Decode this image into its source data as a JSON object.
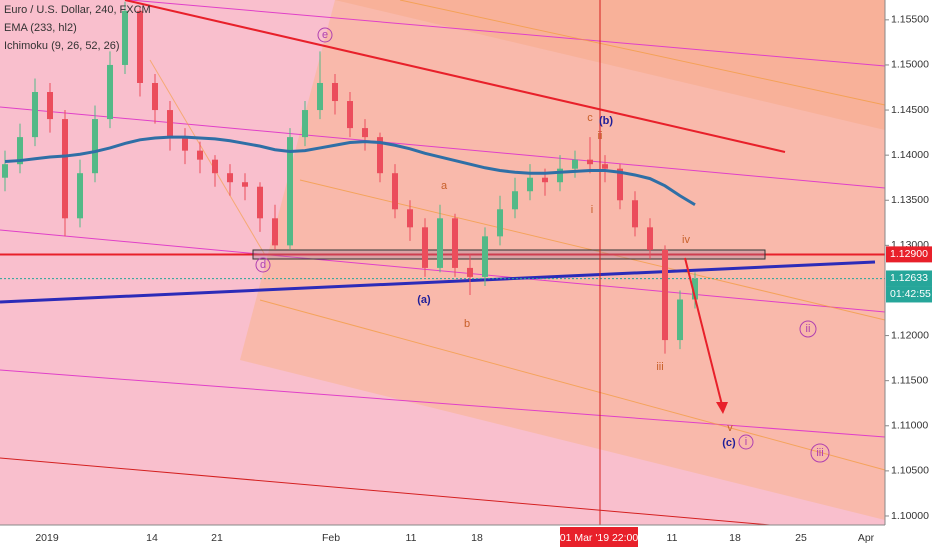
{
  "chart_data": {
    "type": "candlestick",
    "legend": [
      "Euro / U.S. Dollar, 240, FXCM",
      "EMA (233, hl2)",
      "Ichimoku (9, 26, 52, 26)"
    ],
    "up_color": "#53b987",
    "down_color": "#eb4d5c",
    "ema_color": "#2f6fa6",
    "ylim": [
      1.099,
      1.1572
    ],
    "yticks": [
      {
        "value": 1.155,
        "label": "1.15500"
      },
      {
        "value": 1.15,
        "label": "1.15000"
      },
      {
        "value": 1.145,
        "label": "1.14500"
      },
      {
        "value": 1.14,
        "label": "1.14000"
      },
      {
        "value": 1.135,
        "label": "1.13500"
      },
      {
        "value": 1.13,
        "label": "1.13000"
      },
      {
        "value": 1.12,
        "label": "1.12000"
      },
      {
        "value": 1.115,
        "label": "1.11500"
      },
      {
        "value": 1.11,
        "label": "1.11000"
      },
      {
        "value": 1.105,
        "label": "1.10500"
      },
      {
        "value": 1.1,
        "label": "1.10000"
      }
    ],
    "x_labels": [
      "2019",
      "14",
      "21",
      "Feb",
      "11",
      "18",
      "11",
      "18",
      "25",
      "Apr"
    ],
    "crosshair_label": "01 Mar '19  22:00",
    "level_price": {
      "value": 1.129,
      "label": "1.12900"
    },
    "last_price": {
      "value": 1.12633,
      "label": "1.12633"
    },
    "countdown": "01:42:55",
    "annotations": [
      "e",
      "d",
      "c",
      "(b)",
      "ii",
      "a",
      "i",
      "iv",
      "(a)",
      "b",
      "iii",
      "v",
      "(c)",
      "i",
      "ii",
      "iii"
    ],
    "ohlc": [
      [
        1.1375,
        1.1405,
        1.136,
        1.139
      ],
      [
        1.139,
        1.1435,
        1.138,
        1.142
      ],
      [
        1.142,
        1.1485,
        1.141,
        1.147
      ],
      [
        1.147,
        1.148,
        1.1425,
        1.144
      ],
      [
        1.144,
        1.145,
        1.131,
        1.133
      ],
      [
        1.133,
        1.1395,
        1.132,
        1.138
      ],
      [
        1.138,
        1.1455,
        1.137,
        1.144
      ],
      [
        1.144,
        1.1515,
        1.143,
        1.15
      ],
      [
        1.15,
        1.157,
        1.149,
        1.156
      ],
      [
        1.156,
        1.1565,
        1.1465,
        1.148
      ],
      [
        1.148,
        1.149,
        1.1435,
        1.145
      ],
      [
        1.145,
        1.146,
        1.1405,
        1.142
      ],
      [
        1.142,
        1.143,
        1.139,
        1.1405
      ],
      [
        1.1405,
        1.1415,
        1.138,
        1.1395
      ],
      [
        1.1395,
        1.14,
        1.1365,
        1.138
      ],
      [
        1.138,
        1.139,
        1.1355,
        1.137
      ],
      [
        1.137,
        1.138,
        1.135,
        1.1365
      ],
      [
        1.1365,
        1.137,
        1.1315,
        1.133
      ],
      [
        1.133,
        1.1345,
        1.1295,
        1.13
      ],
      [
        1.13,
        1.143,
        1.1295,
        1.142
      ],
      [
        1.142,
        1.146,
        1.141,
        1.145
      ],
      [
        1.145,
        1.1515,
        1.144,
        1.148
      ],
      [
        1.148,
        1.149,
        1.1445,
        1.146
      ],
      [
        1.146,
        1.147,
        1.142,
        1.143
      ],
      [
        1.143,
        1.144,
        1.1405,
        1.142
      ],
      [
        1.142,
        1.1425,
        1.137,
        1.138
      ],
      [
        1.138,
        1.139,
        1.133,
        1.134
      ],
      [
        1.134,
        1.135,
        1.1305,
        1.132
      ],
      [
        1.132,
        1.133,
        1.1265,
        1.1275
      ],
      [
        1.1275,
        1.1345,
        1.127,
        1.133
      ],
      [
        1.133,
        1.1335,
        1.1265,
        1.1275
      ],
      [
        1.1275,
        1.129,
        1.1245,
        1.1265
      ],
      [
        1.1265,
        1.132,
        1.1255,
        1.131
      ],
      [
        1.131,
        1.1355,
        1.13,
        1.134
      ],
      [
        1.134,
        1.1375,
        1.133,
        1.136
      ],
      [
        1.136,
        1.139,
        1.135,
        1.1375
      ],
      [
        1.1375,
        1.1385,
        1.1355,
        1.137
      ],
      [
        1.137,
        1.14,
        1.136,
        1.1385
      ],
      [
        1.1385,
        1.1405,
        1.1375,
        1.1395
      ],
      [
        1.1395,
        1.142,
        1.138,
        1.139
      ],
      [
        1.139,
        1.14,
        1.137,
        1.1385
      ],
      [
        1.1385,
        1.139,
        1.134,
        1.135
      ],
      [
        1.135,
        1.136,
        1.131,
        1.132
      ],
      [
        1.132,
        1.133,
        1.1285,
        1.1295
      ],
      [
        1.1295,
        1.13,
        1.118,
        1.1195
      ],
      [
        1.1195,
        1.125,
        1.1185,
        1.124
      ],
      [
        1.124,
        1.127,
        1.123,
        1.1263
      ]
    ],
    "ema": [
      1.1393,
      1.1394,
      1.1396,
      1.1398,
      1.1399,
      1.1401,
      1.1404,
      1.1408,
      1.1413,
      1.1417,
      1.1419,
      1.142,
      1.142,
      1.1419,
      1.1418,
      1.1416,
      1.1413,
      1.141,
      1.1406,
      1.1404,
      1.1405,
      1.1408,
      1.1411,
      1.1414,
      1.1415,
      1.1414,
      1.1411,
      1.1407,
      1.1402,
      1.1398,
      1.1394,
      1.139,
      1.1386,
      1.1383,
      1.1381,
      1.138,
      1.138,
      1.1381,
      1.1382,
      1.1383,
      1.1383,
      1.1381,
      1.1378,
      1.1374,
      1.1366,
      1.1355,
      1.1345
    ]
  }
}
